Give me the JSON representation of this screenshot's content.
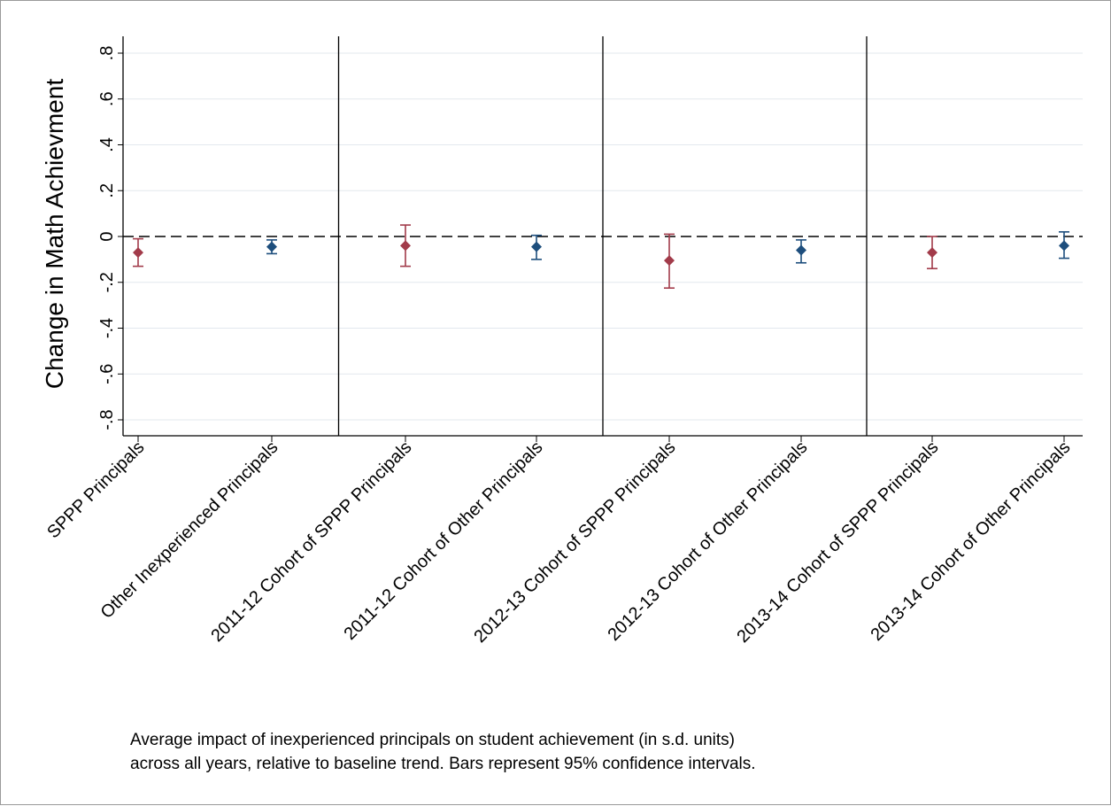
{
  "chart_data": {
    "type": "scatter",
    "subtype": "point-estimates-with-95-percent-confidence-interval-error-bars",
    "ylabel": "Change in Math Achievment",
    "ylim": [
      -0.85,
      0.87
    ],
    "yticks": [
      {
        "value": 0.8,
        "label": ".8"
      },
      {
        "value": 0.6,
        "label": ".6"
      },
      {
        "value": 0.4,
        "label": ".4"
      },
      {
        "value": 0.2,
        "label": ".2"
      },
      {
        "value": 0,
        "label": "0"
      },
      {
        "value": -0.2,
        "label": "-.2"
      },
      {
        "value": -0.4,
        "label": "-.4"
      },
      {
        "value": -0.6,
        "label": "-.6"
      },
      {
        "value": -0.8,
        "label": "-.8"
      }
    ],
    "grid": "horizontal",
    "reference_line": {
      "y": 0,
      "style": "dashed"
    },
    "panel_separators_after_category_index": [
      1,
      3,
      5
    ],
    "colors": {
      "SPPP": "#a23b4a",
      "Other": "#1d4e7d",
      "grid": "#e3e8ee"
    },
    "categories": [
      "SPPP Principals",
      "Other Inexperienced Principals",
      "2011-12 Cohort of SPPP Principals",
      "2011-12 Cohort of Other Principals",
      "2012-13 Cohort of SPPP Principals",
      "2012-13 Cohort of Other Principals",
      "2013-14 Cohort of SPPP Principals",
      "2013-14 Cohort of Other Principals"
    ],
    "points": [
      {
        "category": "SPPP Principals",
        "group": "SPPP",
        "estimate": -0.07,
        "ci_low": -0.13,
        "ci_high": -0.01
      },
      {
        "category": "Other Inexperienced Principals",
        "group": "Other",
        "estimate": -0.045,
        "ci_low": -0.075,
        "ci_high": -0.015
      },
      {
        "category": "2011-12 Cohort of SPPP Principals",
        "group": "SPPP",
        "estimate": -0.04,
        "ci_low": -0.13,
        "ci_high": 0.05
      },
      {
        "category": "2011-12 Cohort of Other Principals",
        "group": "Other",
        "estimate": -0.045,
        "ci_low": -0.1,
        "ci_high": 0.005
      },
      {
        "category": "2012-13 Cohort of SPPP Principals",
        "group": "SPPP",
        "estimate": -0.105,
        "ci_low": -0.225,
        "ci_high": 0.01
      },
      {
        "category": "2012-13 Cohort of Other Principals",
        "group": "Other",
        "estimate": -0.06,
        "ci_low": -0.115,
        "ci_high": -0.015
      },
      {
        "category": "2013-14 Cohort of SPPP Principals",
        "group": "SPPP",
        "estimate": -0.07,
        "ci_low": -0.14,
        "ci_high": 0.0
      },
      {
        "category": "2013-14 Cohort of Other Principals",
        "group": "Other",
        "estimate": -0.04,
        "ci_low": -0.095,
        "ci_high": 0.02
      }
    ],
    "caption": [
      "Average impact of inexperienced principals on student achievement (in s.d. units)",
      "across all years, relative to baseline trend. Bars represent 95% confidence intervals."
    ]
  }
}
